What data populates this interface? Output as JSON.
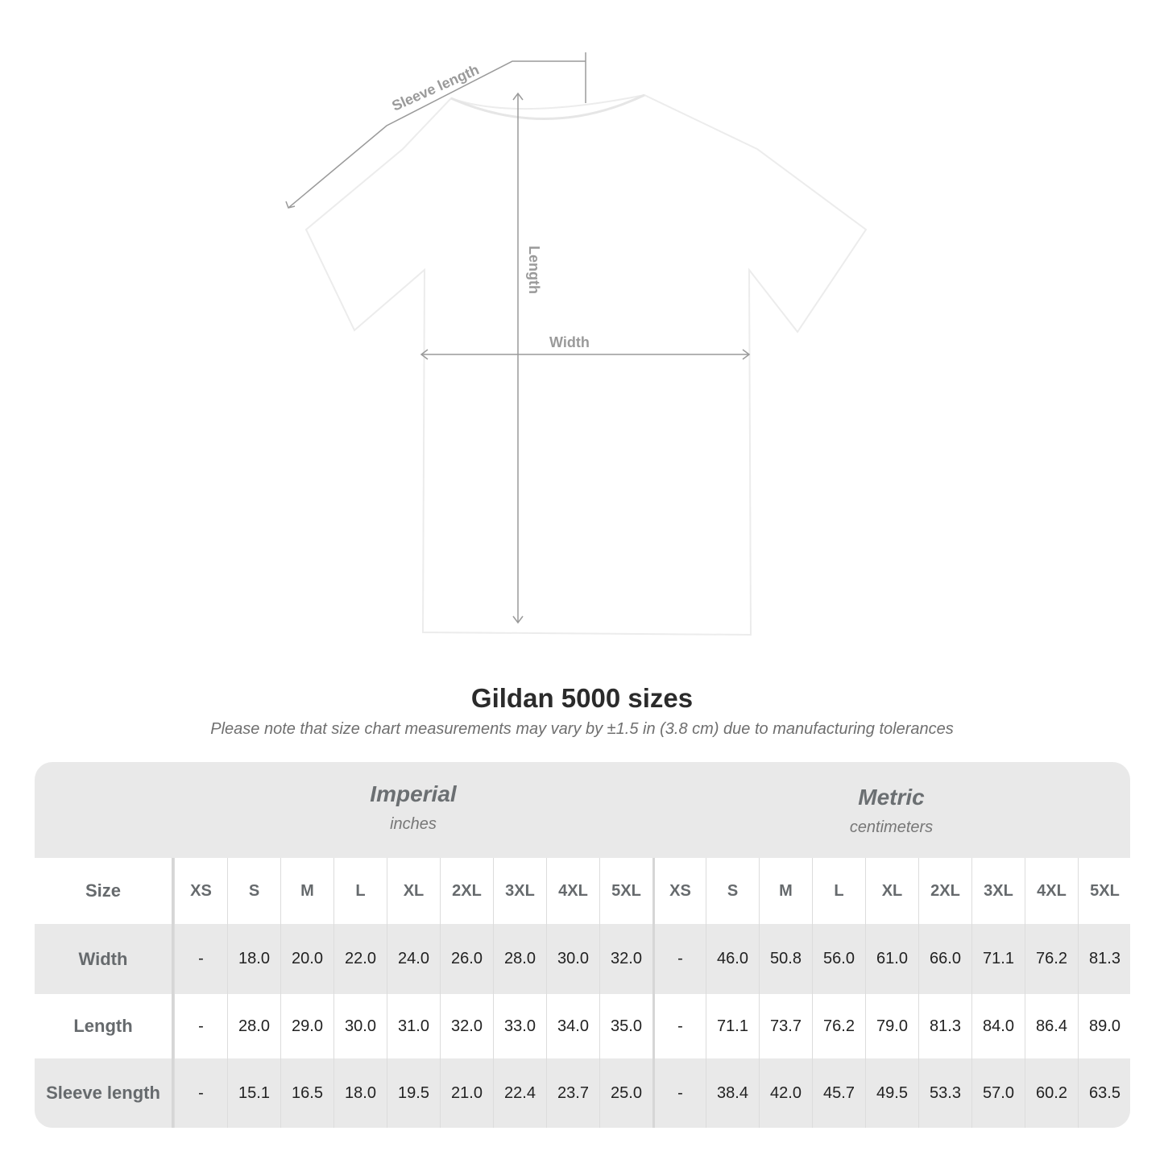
{
  "diagram": {
    "labels": {
      "sleeve": "Sleeve length",
      "length": "Length",
      "width": "Width"
    },
    "shirt_color": "#ffffff",
    "line_color": "#9a9a9a"
  },
  "header": {
    "title": "Gildan 5000 sizes",
    "note": "Please note that size chart measurements may vary by ±1.5 in (3.8 cm) due to manufacturing tolerances"
  },
  "table": {
    "imperial": {
      "title": "Imperial",
      "unit": "inches"
    },
    "metric": {
      "title": "Metric",
      "unit": "centimeters"
    },
    "size_label": "Size",
    "sizes": [
      "XS",
      "S",
      "M",
      "L",
      "XL",
      "2XL",
      "3XL",
      "4XL",
      "5XL"
    ],
    "rows": [
      {
        "label": "Width",
        "imperial": [
          "-",
          "18.0",
          "20.0",
          "22.0",
          "24.0",
          "26.0",
          "28.0",
          "30.0",
          "32.0"
        ],
        "metric": [
          "-",
          "46.0",
          "50.8",
          "56.0",
          "61.0",
          "66.0",
          "71.1",
          "76.2",
          "81.3"
        ]
      },
      {
        "label": "Length",
        "imperial": [
          "-",
          "28.0",
          "29.0",
          "30.0",
          "31.0",
          "32.0",
          "33.0",
          "34.0",
          "35.0"
        ],
        "metric": [
          "-",
          "71.1",
          "73.7",
          "76.2",
          "79.0",
          "81.3",
          "84.0",
          "86.4",
          "89.0"
        ]
      },
      {
        "label": "Sleeve length",
        "imperial": [
          "-",
          "15.1",
          "16.5",
          "18.0",
          "19.5",
          "21.0",
          "22.4",
          "23.7",
          "25.0"
        ],
        "metric": [
          "-",
          "38.4",
          "42.0",
          "45.7",
          "49.5",
          "53.3",
          "57.0",
          "60.2",
          "63.5"
        ]
      }
    ]
  }
}
